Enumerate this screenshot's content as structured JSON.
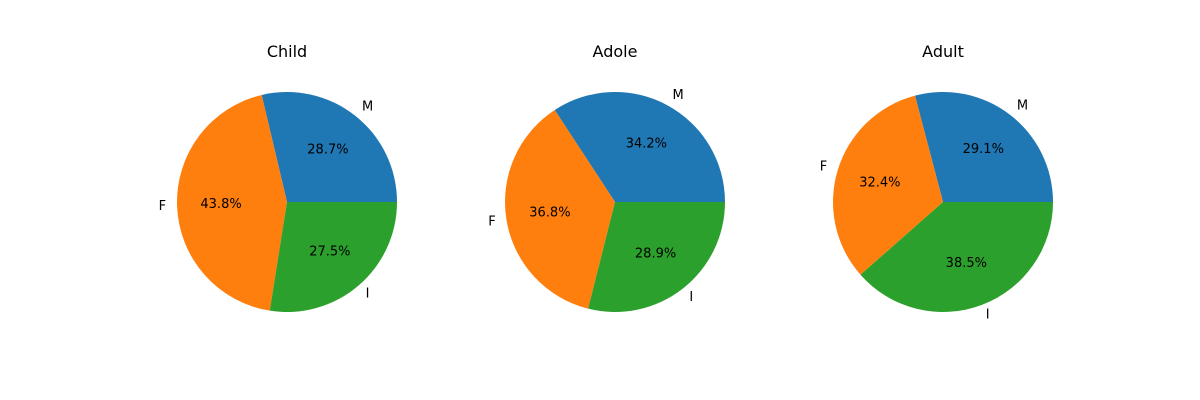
{
  "chart_data": [
    {
      "type": "pie",
      "title": "Child",
      "labels": [
        "M",
        "F",
        "I"
      ],
      "values": [
        28.7,
        43.8,
        27.5
      ],
      "value_labels": [
        "28.7%",
        "43.8%",
        "27.5%"
      ]
    },
    {
      "type": "pie",
      "title": "Adole",
      "labels": [
        "M",
        "F",
        "I"
      ],
      "values": [
        34.2,
        36.8,
        28.9
      ],
      "value_labels": [
        "34.2%",
        "36.8%",
        "28.9%"
      ]
    },
    {
      "type": "pie",
      "title": "Adult",
      "labels": [
        "M",
        "F",
        "I"
      ],
      "values": [
        29.1,
        32.4,
        38.5
      ],
      "value_labels": [
        "29.1%",
        "32.4%",
        "38.5%"
      ]
    }
  ],
  "colors": [
    "#1f77b4",
    "#ff7f0e",
    "#2ca02c"
  ]
}
